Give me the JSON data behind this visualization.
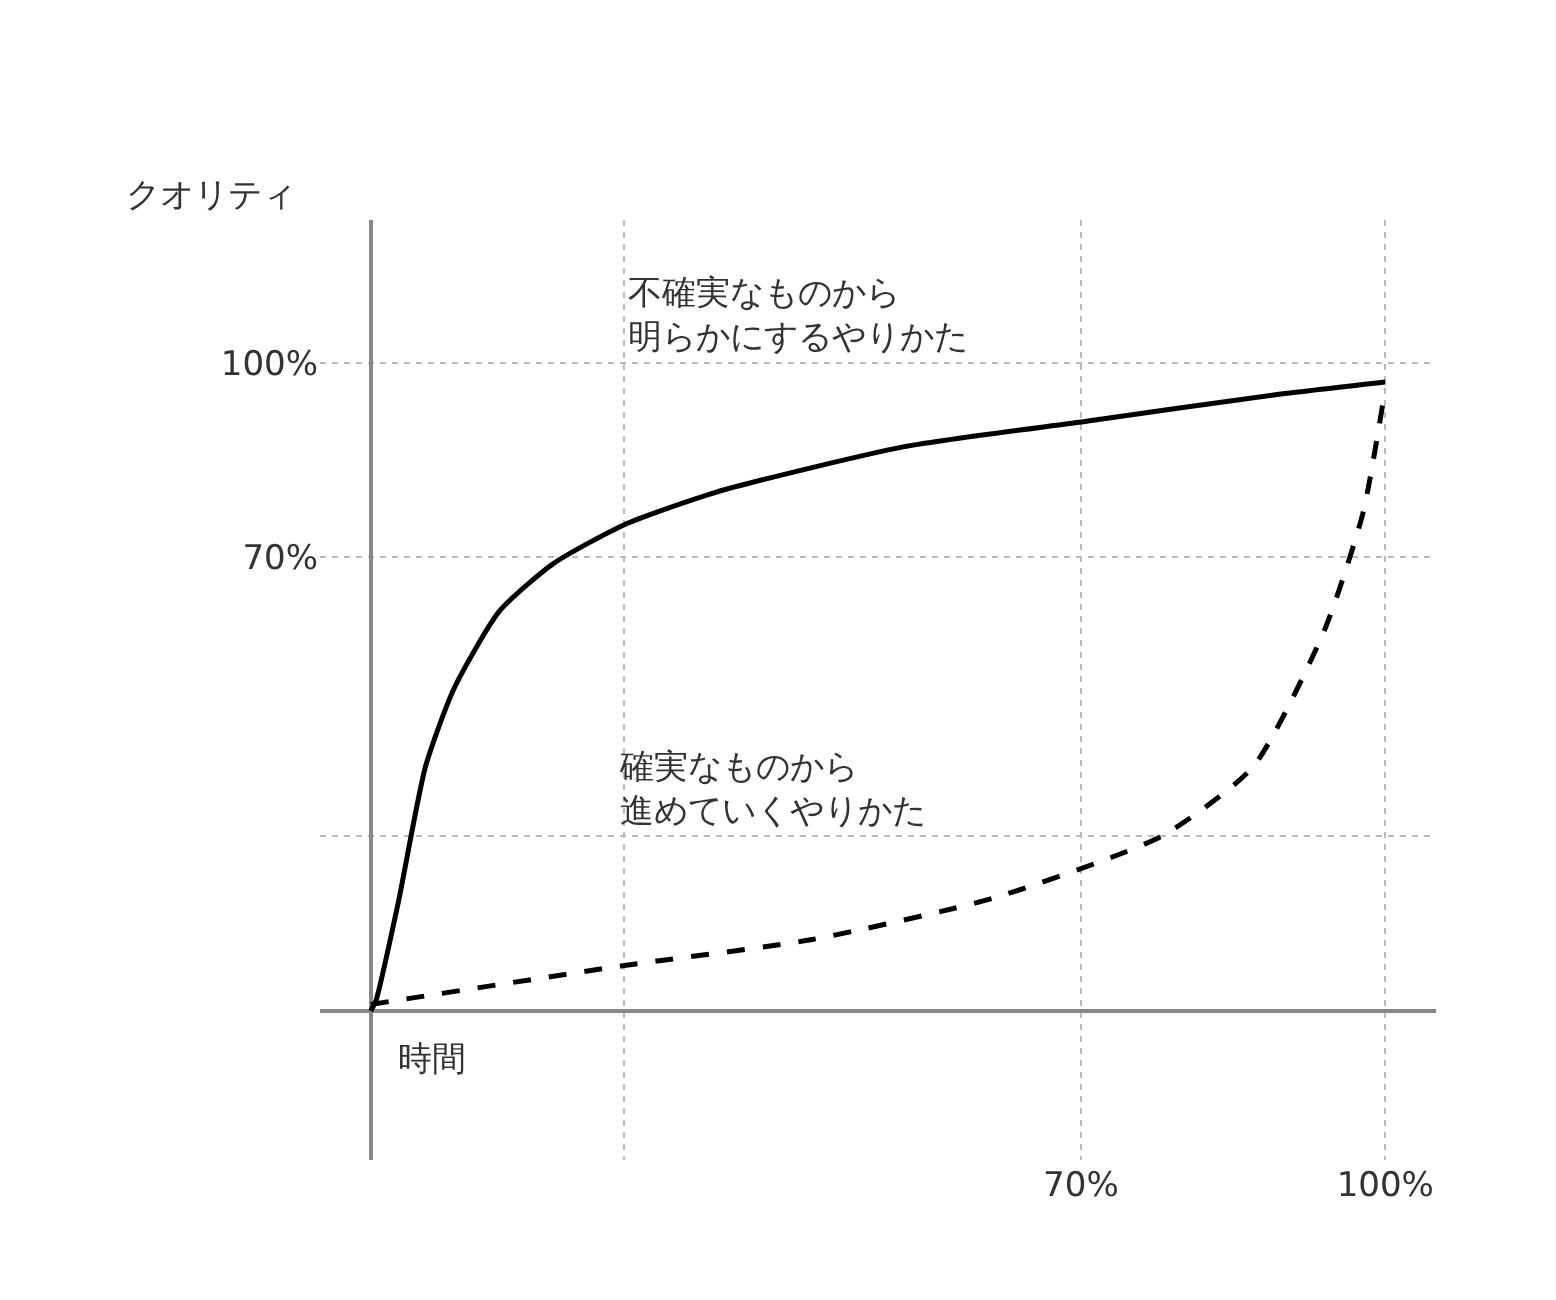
{
  "chart_data": {
    "type": "line",
    "xlabel": "時間",
    "ylabel": "クオリティ",
    "xlim": [
      -5,
      105
    ],
    "ylim": [
      -23,
      122
    ],
    "xticks": [
      {
        "value": 25,
        "label": null
      },
      {
        "value": 70,
        "label": "70%"
      },
      {
        "value": 100,
        "label": "100%"
      }
    ],
    "yticks": [
      {
        "value": 27,
        "label": null
      },
      {
        "value": 70,
        "label": "70%"
      },
      {
        "value": 100,
        "label": "100%"
      }
    ],
    "grid": true,
    "legend": false,
    "series": [
      {
        "name": "不確実なものから明らかにするやりかた",
        "color": "#000000",
        "line_style": "solid",
        "x": [
          0,
          0.5,
          2.7,
          5.4,
          8.2,
          12.7,
          18,
          25,
          34,
          52.5,
          70.7,
          89,
          100
        ],
        "values": [
          0,
          1.5,
          16.6,
          37.7,
          49.7,
          61.7,
          69,
          75,
          80,
          87,
          91,
          95,
          97
        ]
      },
      {
        "name": "確実なものから進めていくやりかた",
        "color": "#000000",
        "line_style": "dashed",
        "x": [
          0,
          25,
          43.5,
          61.6,
          78,
          87,
          94,
          97.8,
          100
        ],
        "values": [
          1,
          7,
          11,
          17.5,
          27,
          37.7,
          58.7,
          76.8,
          96
        ]
      }
    ]
  }
}
